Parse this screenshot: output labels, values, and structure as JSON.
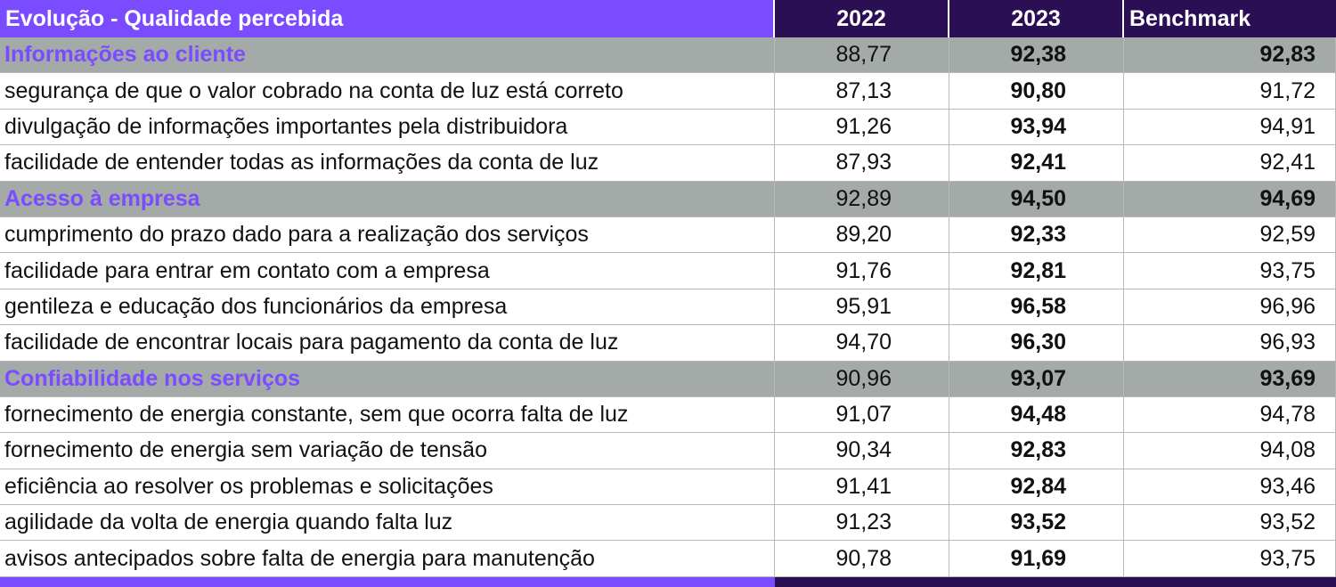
{
  "chart_data": {
    "type": "table",
    "title": "Evolução - Qualidade percebida",
    "columns": [
      "2022",
      "2023",
      "Benchmark"
    ],
    "rows": [
      {
        "label": "Informações ao cliente",
        "kind": "category",
        "values": [
          "88,77",
          "92,38",
          "92,83"
        ]
      },
      {
        "label": "segurança de que o valor cobrado na conta de luz está correto",
        "kind": "item",
        "values": [
          "87,13",
          "90,80",
          "91,72"
        ]
      },
      {
        "label": "divulgação de informações importantes pela distribuidora",
        "kind": "item",
        "values": [
          "91,26",
          "93,94",
          "94,91"
        ]
      },
      {
        "label": "facilidade de entender todas as informações da conta de luz",
        "kind": "item",
        "values": [
          "87,93",
          "92,41",
          "92,41"
        ]
      },
      {
        "label": "Acesso à empresa",
        "kind": "category",
        "values": [
          "92,89",
          "94,50",
          "94,69"
        ]
      },
      {
        "label": "cumprimento do prazo dado para a realização dos serviços",
        "kind": "item",
        "values": [
          "89,20",
          "92,33",
          "92,59"
        ]
      },
      {
        "label": "facilidade para entrar em contato com a empresa",
        "kind": "item",
        "values": [
          "91,76",
          "92,81",
          "93,75"
        ]
      },
      {
        "label": "gentileza e educação dos funcionários da empresa",
        "kind": "item",
        "values": [
          "95,91",
          "96,58",
          "96,96"
        ]
      },
      {
        "label": "facilidade de encontrar locais para pagamento da conta de luz",
        "kind": "item",
        "values": [
          "94,70",
          "96,30",
          "96,93"
        ]
      },
      {
        "label": "Confiabilidade nos serviços",
        "kind": "category",
        "values": [
          "90,96",
          "93,07",
          "93,69"
        ]
      },
      {
        "label": "fornecimento de energia constante, sem que ocorra falta de luz",
        "kind": "item",
        "values": [
          "91,07",
          "94,48",
          "94,78"
        ]
      },
      {
        "label": "fornecimento de energia sem variação de tensão",
        "kind": "item",
        "values": [
          "90,34",
          "92,83",
          "94,08"
        ]
      },
      {
        "label": "eficiência ao resolver os problemas e solicitações",
        "kind": "item",
        "values": [
          "91,41",
          "92,84",
          "93,46"
        ]
      },
      {
        "label": "agilidade da volta de energia quando falta luz",
        "kind": "item",
        "values": [
          "91,23",
          "93,52",
          "93,52"
        ]
      },
      {
        "label": "avisos antecipados sobre falta de energia para manutenção",
        "kind": "item",
        "values": [
          "90,78",
          "91,69",
          "93,75"
        ]
      }
    ]
  },
  "colors": {
    "title_bg": "#7b4cff",
    "header_bg": "#2a0f55",
    "category_bg": "#a4aaa8",
    "category_text": "#7b4cff"
  }
}
